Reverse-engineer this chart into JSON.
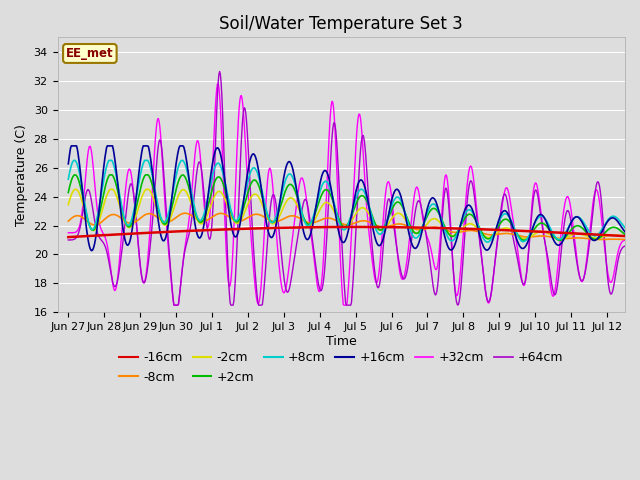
{
  "title": "Soil/Water Temperature Set 3",
  "xlabel": "Time",
  "ylabel": "Temperature (C)",
  "ylim": [
    16,
    35
  ],
  "yticks": [
    16,
    18,
    20,
    22,
    24,
    26,
    28,
    30,
    32,
    34
  ],
  "background_color": "#dddddd",
  "plot_bg_color": "#dddddd",
  "label_box_text": "EE_met",
  "series_colors": {
    "-16cm": "#dd0000",
    "-8cm": "#ff8800",
    "-2cm": "#dddd00",
    "+2cm": "#00bb00",
    "+8cm": "#00cccc",
    "+16cm": "#000099",
    "+32cm": "#ff00ff",
    "+64cm": "#aa00cc"
  },
  "xtick_labels": [
    "Jun 27",
    "Jun 28",
    "Jun 29",
    "Jun 30",
    "Jul 1",
    "Jul 2",
    "Jul 3",
    "Jul 4",
    "Jul 5",
    "Jul 6",
    "Jul 7",
    "Jul 8",
    "Jul 9",
    "Jul 10",
    "Jul 11",
    "Jul 12"
  ],
  "grid_color": "#ffffff",
  "legend_fontsize": 9,
  "title_fontsize": 12
}
